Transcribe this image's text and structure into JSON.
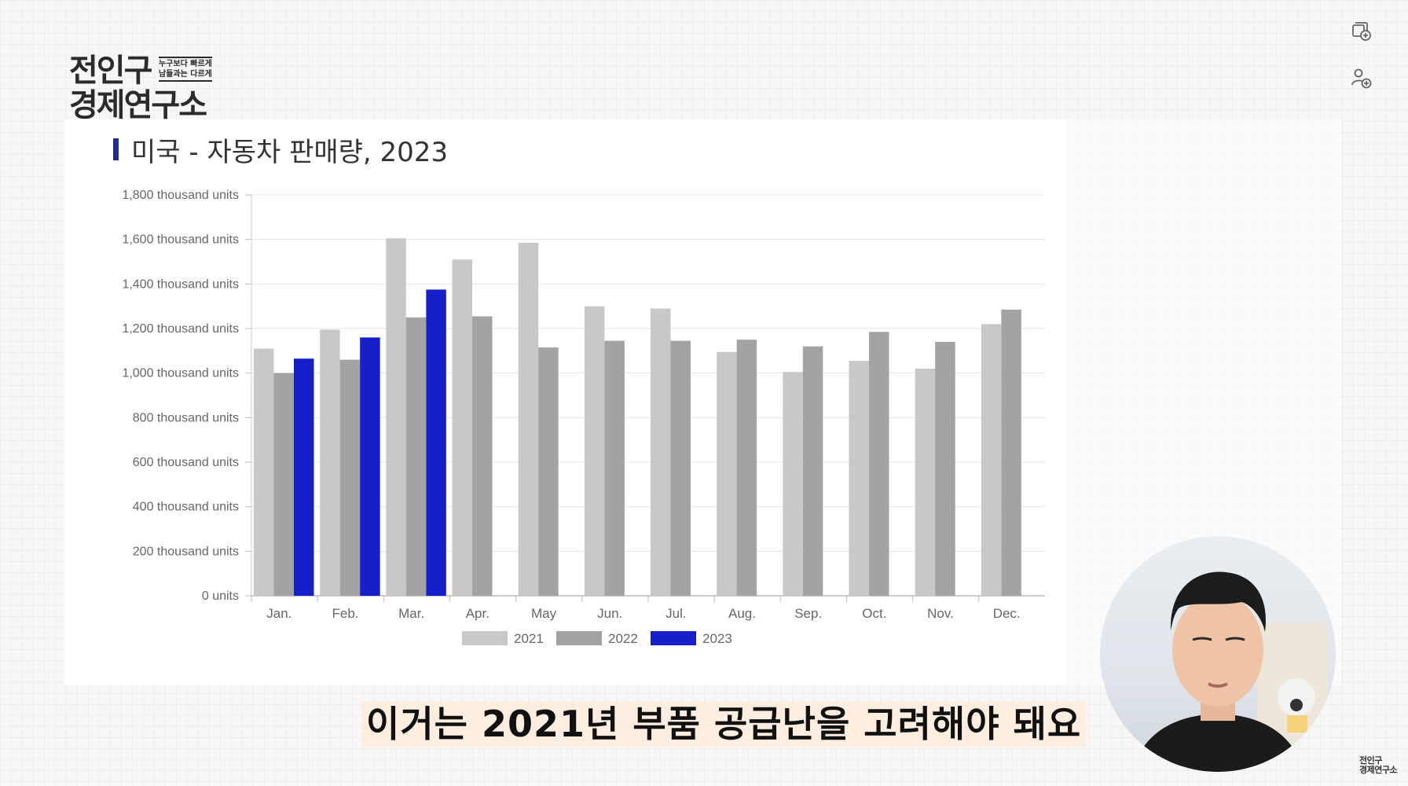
{
  "logo": {
    "line1": "전인구",
    "line2": "경제연구소",
    "tag_line1": "누구보다 빠르게",
    "tag_line2": "남들과는 다르게"
  },
  "corner_logo": {
    "line1": "전인구",
    "line2": "경제연구소"
  },
  "slide": {
    "title": "미국 - 자동차 판매량, 2023"
  },
  "subtitle": "이거는 2021년 부품 공급난을 고려해야 돼요",
  "icons": {
    "top": "add-to-playlist-icon",
    "second": "add-person-icon"
  },
  "colors": {
    "s2021": "#c8c8c8",
    "s2022": "#a3a3a3",
    "s2023": "#1520c8",
    "title_bar": "#1f2b8f"
  },
  "chart_data": {
    "type": "bar",
    "title": "",
    "xlabel": "",
    "ylabel": "",
    "ylim": [
      0,
      1800
    ],
    "y_ticks": [
      "0 units",
      "200 thousand units",
      "400 thousand units",
      "600 thousand units",
      "800 thousand units",
      "1,000 thousand units",
      "1,200 thousand units",
      "1,400 thousand units",
      "1,600 thousand units",
      "1,800 thousand units"
    ],
    "categories": [
      "Jan.",
      "Feb.",
      "Mar.",
      "Apr.",
      "May",
      "Jun.",
      "Jul.",
      "Aug.",
      "Sep.",
      "Oct.",
      "Nov.",
      "Dec."
    ],
    "series": [
      {
        "name": "2021",
        "color": "#c8c8c8",
        "values": [
          1110,
          1195,
          1605,
          1510,
          1585,
          1300,
          1290,
          1095,
          1005,
          1055,
          1020,
          1220
        ]
      },
      {
        "name": "2022",
        "color": "#a3a3a3",
        "values": [
          1000,
          1060,
          1250,
          1255,
          1115,
          1145,
          1145,
          1150,
          1120,
          1185,
          1140,
          1285
        ]
      },
      {
        "name": "2023",
        "color": "#1520c8",
        "values": [
          1065,
          1160,
          1375,
          null,
          null,
          null,
          null,
          null,
          null,
          null,
          null,
          null
        ]
      }
    ],
    "grid": true,
    "legend_position": "bottom-center"
  }
}
